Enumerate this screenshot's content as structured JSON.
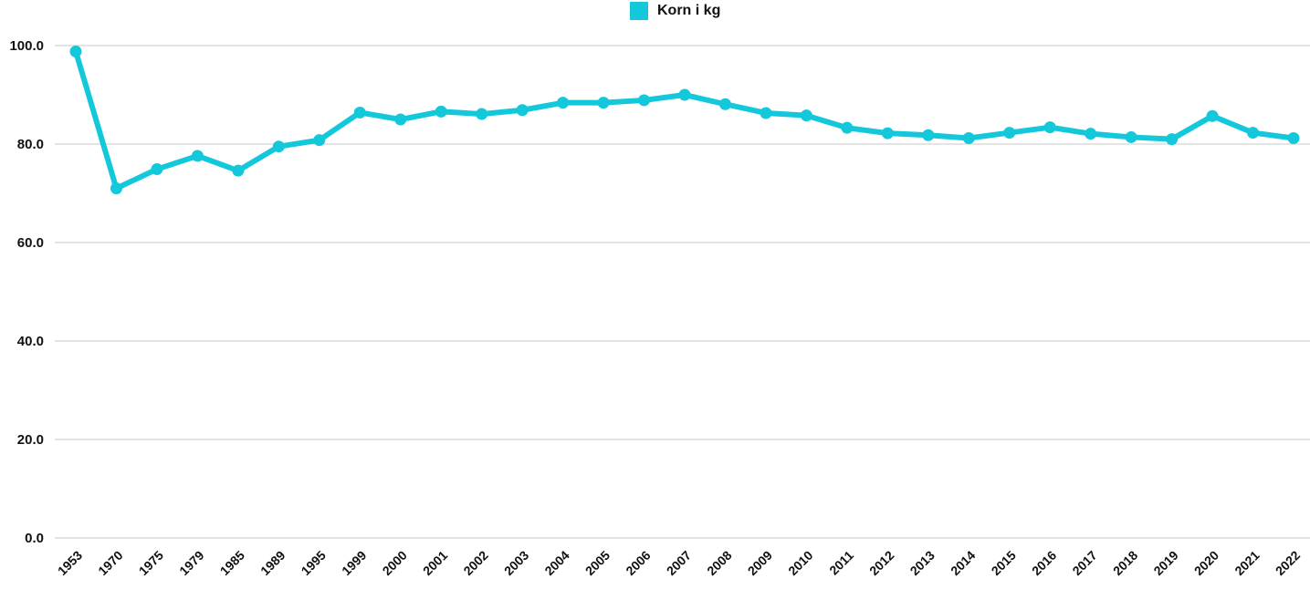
{
  "chart_data": {
    "type": "line",
    "title": "",
    "xlabel": "",
    "ylabel": "",
    "ylim": [
      0,
      100
    ],
    "yticks": [
      "0.0",
      "20.0",
      "40.0",
      "60.0",
      "80.0",
      "100.0"
    ],
    "grid": true,
    "legend_position": "top-center",
    "categories": [
      "1953",
      "1970",
      "1975",
      "1979",
      "1985",
      "1989",
      "1995",
      "1999",
      "2000",
      "2001",
      "2002",
      "2003",
      "2004",
      "2005",
      "2006",
      "2007",
      "2008",
      "2009",
      "2010",
      "2011",
      "2012",
      "2013",
      "2014",
      "2015",
      "2016",
      "2017",
      "2018",
      "2019",
      "2020",
      "2021",
      "2022"
    ],
    "series": [
      {
        "name": "Korn i kg",
        "color": "#14c8dc",
        "values": [
          98.8,
          71.0,
          74.9,
          77.6,
          74.6,
          79.5,
          80.8,
          86.4,
          85.0,
          86.6,
          86.1,
          86.9,
          88.4,
          88.4,
          88.9,
          90.0,
          88.1,
          86.3,
          85.8,
          83.3,
          82.2,
          81.8,
          81.2,
          82.3,
          83.4,
          82.1,
          81.4,
          81.0,
          85.7,
          82.3,
          81.2
        ]
      }
    ]
  }
}
